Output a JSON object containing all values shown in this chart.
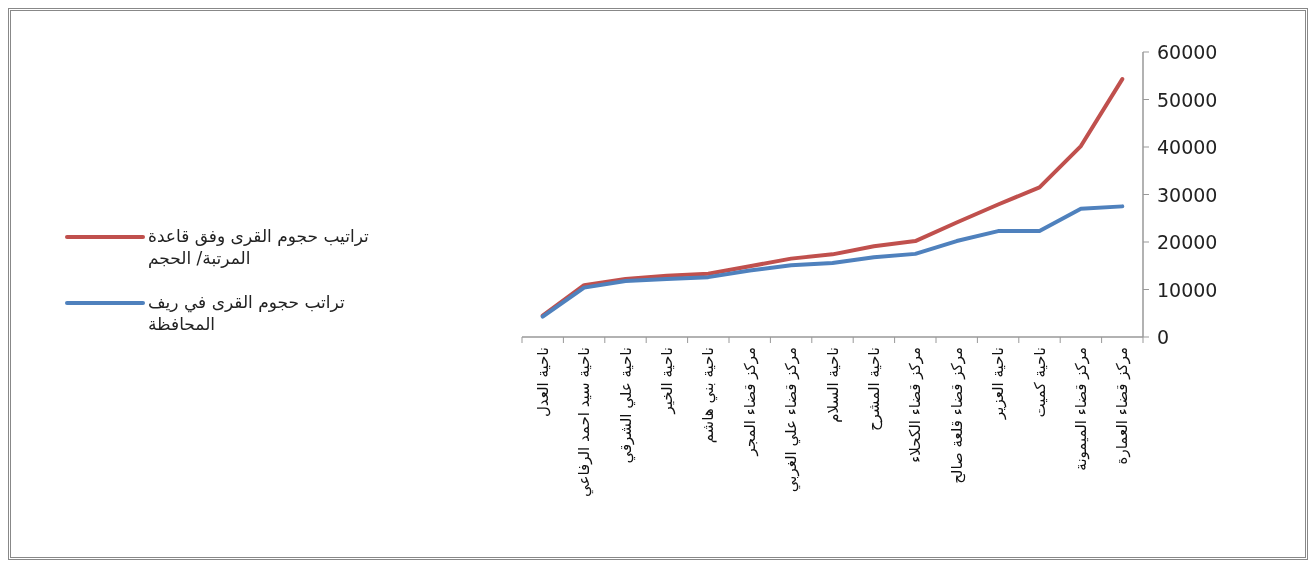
{
  "chart_data": {
    "type": "line",
    "categories": [
      "ناحية العدل",
      "ناحية سيد احمد الرفاعي",
      "ناحية علي الشرقي",
      "ناحية الخير",
      "ناحية بني هاشم",
      "مركز قضاء المجر",
      "مركز قضاء علي الغربي",
      "ناحية السلام",
      "ناحية المشرح",
      "مركز قضاء الكحلاء",
      "مركز قضاء قلعة صالح",
      "ناحية العزير",
      "ناحية كميت",
      "مركز قضاء الميمونة",
      "مركز قضاء العمارة"
    ],
    "series": [
      {
        "name": "تراتيب حجوم القرى وفق قاعدة المرتبة/ الحجم",
        "color": "#c0504d",
        "values": [
          4500,
          10900,
          12200,
          12900,
          13300,
          14900,
          16500,
          17400,
          19100,
          20200,
          24100,
          27900,
          31500,
          40200,
          54300
        ]
      },
      {
        "name": "تراتب حجوم القرى في ريف المحافظة",
        "color": "#4f81bd",
        "values": [
          4300,
          10400,
          11800,
          12200,
          12600,
          14000,
          15100,
          15600,
          16800,
          17500,
          20200,
          22300,
          22300,
          27000,
          27500
        ]
      }
    ],
    "ylim": [
      0,
      60000
    ],
    "yticks": [
      0,
      10000,
      20000,
      30000,
      40000,
      50000,
      60000
    ],
    "grid": false,
    "legend": "left",
    "marker": "none",
    "line_style": "solid"
  }
}
